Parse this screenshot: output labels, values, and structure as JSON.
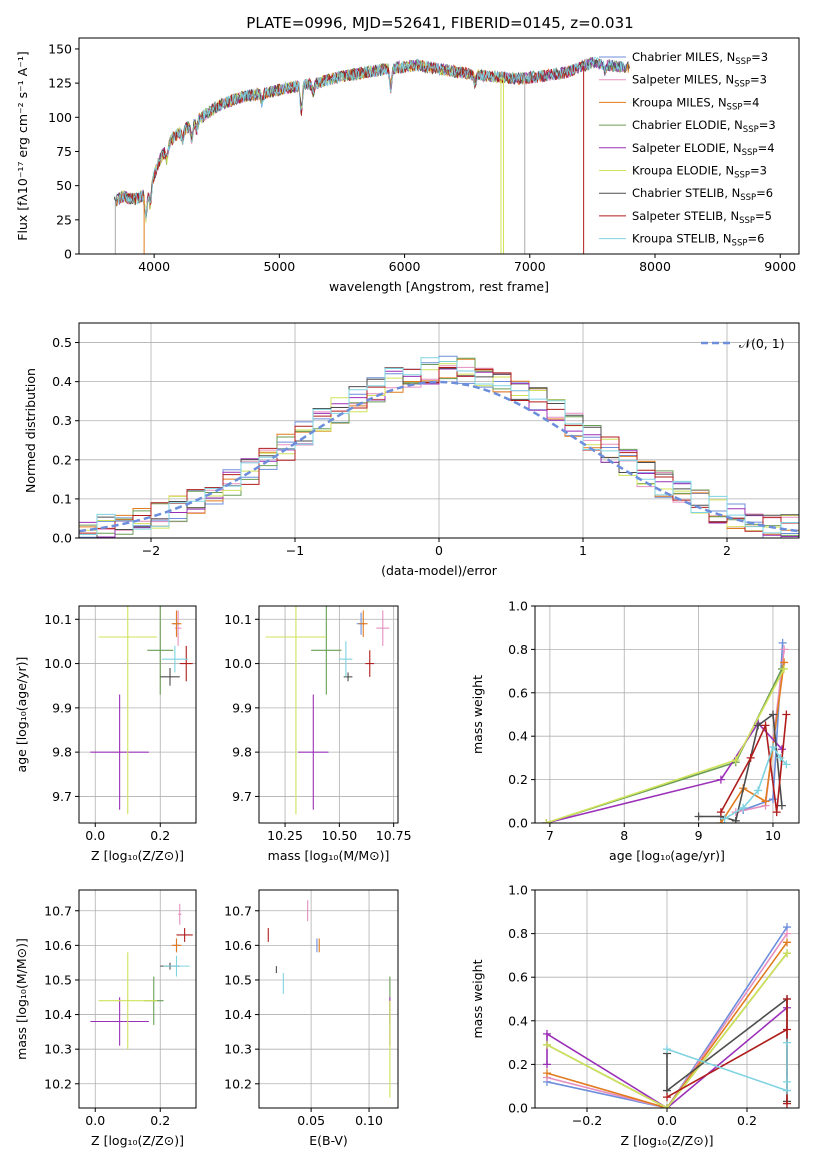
{
  "title": "PLATE=0996, MJD=52641, FIBERID=0145, z=0.031",
  "models": [
    {
      "name": "Chabrier MILES",
      "nssp": "3",
      "color": "#6c8edb"
    },
    {
      "name": "Salpeter MILES",
      "nssp": "3",
      "color": "#e68fbf"
    },
    {
      "name": "Kroupa MILES",
      "nssp": "4",
      "color": "#e07b1f"
    },
    {
      "name": "Chabrier ELODIE",
      "nssp": "3",
      "color": "#6a9e56"
    },
    {
      "name": "Salpeter ELODIE",
      "nssp": "4",
      "color": "#9b30b8"
    },
    {
      "name": "Kroupa ELODIE",
      "nssp": "3",
      "color": "#d0e25a"
    },
    {
      "name": "Chabrier STELIB",
      "nssp": "6",
      "color": "#4d4d4d"
    },
    {
      "name": "Salpeter STELIB",
      "nssp": "5",
      "color": "#b01c1c"
    },
    {
      "name": "Kroupa STELIB",
      "nssp": "6",
      "color": "#7fd3e0"
    }
  ],
  "chart_data": [
    {
      "id": "spectrum",
      "type": "line",
      "title": "PLATE=0996, MJD=52641, FIBERID=0145, z=0.031",
      "xlabel": "wavelength [Angstrom, rest frame]",
      "ylabel": "Flux [fλ10⁻¹⁷ erg cm⁻² s⁻¹ A⁻¹]",
      "xlim": [
        3400,
        9150
      ],
      "ylim": [
        0,
        158
      ],
      "xticks": [
        4000,
        5000,
        6000,
        7000,
        8000,
        9000
      ],
      "yticks": [
        0,
        25,
        50,
        75,
        100,
        125,
        150
      ],
      "grid": false,
      "legend_position": "top-right",
      "continuum": {
        "x": [
          3680,
          3750,
          3850,
          3950,
          4050,
          4150,
          4300,
          4500,
          4700,
          4900,
          5100,
          5300,
          5500,
          5700,
          5900,
          6100,
          6300,
          6500,
          6700,
          6900,
          7100,
          7300,
          7500,
          7700,
          7800
        ],
        "y": [
          38,
          42,
          40,
          45,
          70,
          85,
          95,
          108,
          115,
          118,
          122,
          125,
          130,
          133,
          136,
          138,
          135,
          132,
          130,
          128,
          130,
          133,
          140,
          137,
          136
        ]
      }
    },
    {
      "id": "residuals",
      "type": "histogram",
      "xlabel": "(data-model)/error",
      "ylabel": "Normed distribution",
      "xlim": [
        -2.5,
        2.5
      ],
      "ylim": [
        0,
        0.55
      ],
      "xticks": [
        -2,
        -1,
        0,
        1,
        2
      ],
      "yticks": [
        0.0,
        0.1,
        0.2,
        0.3,
        0.4,
        0.5
      ],
      "grid": true,
      "legend_position": "top-right",
      "reference_curve": {
        "name": "𝒩(0, 1)",
        "mean": 0,
        "sigma": 1,
        "color": "#6c8edb"
      }
    },
    {
      "id": "age-vs-Z",
      "type": "errorbar",
      "xlabel": "Z [log₁₀(Z/Z⊙)]",
      "ylabel": "age  [log₁₀(age/yr)]",
      "xlim": [
        -0.05,
        0.31
      ],
      "ylim": [
        9.64,
        10.13
      ],
      "xticks": [
        0.0,
        0.2
      ],
      "yticks": [
        9.7,
        9.8,
        9.9,
        10.0,
        10.1
      ],
      "grid": true,
      "points": [
        {
          "model": 0,
          "x": 0.25,
          "xerr": 0.01,
          "y": 10.09,
          "yerr": 0.025
        },
        {
          "model": 1,
          "x": 0.255,
          "xerr": 0.01,
          "y": 10.08,
          "yerr": 0.04
        },
        {
          "model": 2,
          "x": 0.25,
          "xerr": 0.015,
          "y": 10.09,
          "yerr": 0.03
        },
        {
          "model": 3,
          "x": 0.2,
          "xerr": 0.04,
          "y": 10.03,
          "yerr": 0.1
        },
        {
          "model": 4,
          "x": 0.075,
          "xerr": 0.09,
          "y": 9.8,
          "yerr": 0.13
        },
        {
          "model": 5,
          "x": 0.1,
          "xerr": 0.09,
          "y": 10.06,
          "yerr": 0.4
        },
        {
          "model": 6,
          "x": 0.23,
          "xerr": 0.03,
          "y": 9.97,
          "yerr": 0.02
        },
        {
          "model": 7,
          "x": 0.28,
          "xerr": 0.02,
          "y": 10.0,
          "yerr": 0.04
        },
        {
          "model": 8,
          "x": 0.245,
          "xerr": 0.04,
          "y": 10.01,
          "yerr": 0.03
        }
      ]
    },
    {
      "id": "age-vs-mass",
      "type": "errorbar",
      "xlabel": "mass [log₁₀(M/M⊙)]",
      "ylabel": "",
      "xlim": [
        10.13,
        10.77
      ],
      "ylim": [
        9.64,
        10.13
      ],
      "xticks": [
        10.25,
        10.5,
        10.75
      ],
      "yticks": [
        9.7,
        9.8,
        9.9,
        10.0,
        10.1
      ],
      "grid": true,
      "points": [
        {
          "model": 0,
          "x": 10.6,
          "xerr": 0.02,
          "y": 10.09,
          "yerr": 0.025
        },
        {
          "model": 1,
          "x": 10.7,
          "xerr": 0.03,
          "y": 10.08,
          "yerr": 0.04
        },
        {
          "model": 2,
          "x": 10.61,
          "xerr": 0.02,
          "y": 10.09,
          "yerr": 0.03
        },
        {
          "model": 3,
          "x": 10.44,
          "xerr": 0.07,
          "y": 10.03,
          "yerr": 0.1
        },
        {
          "model": 4,
          "x": 10.38,
          "xerr": 0.07,
          "y": 9.8,
          "yerr": 0.13
        },
        {
          "model": 5,
          "x": 10.3,
          "xerr": 0.14,
          "y": 10.06,
          "yerr": 0.4
        },
        {
          "model": 6,
          "x": 10.54,
          "xerr": 0.02,
          "y": 9.97,
          "yerr": 0.01
        },
        {
          "model": 7,
          "x": 10.64,
          "xerr": 0.02,
          "y": 10.0,
          "yerr": 0.03
        },
        {
          "model": 8,
          "x": 10.53,
          "xerr": 0.03,
          "y": 10.01,
          "yerr": 0.04
        }
      ]
    },
    {
      "id": "weight-vs-age",
      "type": "line",
      "xlabel": "age  [log₁₀(age/yr)]",
      "ylabel": "mass weight",
      "xlim": [
        6.8,
        10.35
      ],
      "ylim": [
        0,
        1.0
      ],
      "xticks": [
        7,
        8,
        9,
        10
      ],
      "yticks": [
        0.0,
        0.2,
        0.4,
        0.6,
        0.8,
        1.0
      ],
      "grid": true,
      "series": [
        {
          "model": 0,
          "x": [
            9.6,
            10.0,
            10.13
          ],
          "y": [
            0.06,
            0.11,
            0.83
          ]
        },
        {
          "model": 1,
          "x": [
            9.5,
            9.9,
            10.15
          ],
          "y": [
            0.05,
            0.08,
            0.8
          ]
        },
        {
          "model": 2,
          "x": [
            9.3,
            9.6,
            9.9,
            10.15
          ],
          "y": [
            0.0,
            0.16,
            0.1,
            0.74
          ]
        },
        {
          "model": 3,
          "x": [
            6.95,
            9.5,
            10.12
          ],
          "y": [
            0.0,
            0.28,
            0.71
          ]
        },
        {
          "model": 4,
          "x": [
            6.95,
            9.3,
            9.8,
            10.12
          ],
          "y": [
            0.0,
            0.2,
            0.46,
            0.34
          ]
        },
        {
          "model": 5,
          "x": [
            6.95,
            9.5,
            10.15
          ],
          "y": [
            0.0,
            0.29,
            0.71
          ]
        },
        {
          "model": 6,
          "x": [
            9.0,
            9.3,
            9.5,
            9.8,
            10.0,
            10.12
          ],
          "y": [
            0.03,
            0.03,
            0.01,
            0.45,
            0.5,
            0.08
          ]
        },
        {
          "model": 7,
          "x": [
            9.3,
            9.7,
            9.9,
            10.05,
            10.18
          ],
          "y": [
            0.05,
            0.3,
            0.45,
            0.05,
            0.5
          ]
        },
        {
          "model": 8,
          "x": [
            9.35,
            9.6,
            9.8,
            10.0,
            10.1,
            10.18
          ],
          "y": [
            0.02,
            0.07,
            0.15,
            0.35,
            0.3,
            0.27
          ]
        }
      ]
    },
    {
      "id": "mass-vs-Z",
      "type": "errorbar",
      "xlabel": "Z [log₁₀(Z/Z⊙)]",
      "ylabel": "mass [log₁₀(M/M⊙)]",
      "xlim": [
        -0.05,
        0.31
      ],
      "ylim": [
        10.13,
        10.76
      ],
      "xticks": [
        0.0,
        0.2
      ],
      "yticks": [
        10.2,
        10.3,
        10.4,
        10.5,
        10.6,
        10.7
      ],
      "grid": true,
      "points": [
        {
          "model": 0,
          "x": 0.25,
          "xerr": 0.01,
          "y": 10.6,
          "yerr": 0.02
        },
        {
          "model": 1,
          "x": 0.26,
          "xerr": 0.005,
          "y": 10.69,
          "yerr": 0.03
        },
        {
          "model": 2,
          "x": 0.25,
          "xerr": 0.015,
          "y": 10.6,
          "yerr": 0.02
        },
        {
          "model": 3,
          "x": 0.18,
          "xerr": 0.03,
          "y": 10.44,
          "yerr": 0.07
        },
        {
          "model": 4,
          "x": 0.075,
          "xerr": 0.09,
          "y": 10.38,
          "yerr": 0.07
        },
        {
          "model": 5,
          "x": 0.1,
          "xerr": 0.09,
          "y": 10.44,
          "yerr": 0.14
        },
        {
          "model": 6,
          "x": 0.23,
          "xerr": 0.03,
          "y": 10.54,
          "yerr": 0.01
        },
        {
          "model": 7,
          "x": 0.275,
          "xerr": 0.025,
          "y": 10.63,
          "yerr": 0.02
        },
        {
          "model": 8,
          "x": 0.25,
          "xerr": 0.04,
          "y": 10.54,
          "yerr": 0.03
        }
      ]
    },
    {
      "id": "mass-vs-ebv",
      "type": "errorbar",
      "xlabel": "E(B-V)",
      "ylabel": "",
      "xlim": [
        0.005,
        0.125
      ],
      "ylim": [
        10.13,
        10.76
      ],
      "xticks": [
        0.05,
        0.1
      ],
      "yticks": [
        10.2,
        10.3,
        10.4,
        10.5,
        10.6,
        10.7
      ],
      "grid": true,
      "points": [
        {
          "model": 0,
          "x": 0.055,
          "xerr": 0.0,
          "y": 10.6,
          "yerr": 0.02
        },
        {
          "model": 1,
          "x": 0.047,
          "xerr": 0.0,
          "y": 10.7,
          "yerr": 0.03
        },
        {
          "model": 2,
          "x": 0.057,
          "xerr": 0.0,
          "y": 10.6,
          "yerr": 0.02
        },
        {
          "model": 3,
          "x": 0.118,
          "xerr": 0.0,
          "y": 10.44,
          "yerr": 0.07
        },
        {
          "model": 4,
          "x": 0.118,
          "xerr": 0.0,
          "y": 10.38,
          "yerr": 0.07
        },
        {
          "model": 5,
          "x": 0.118,
          "xerr": 0.0,
          "y": 10.3,
          "yerr": 0.14
        },
        {
          "model": 6,
          "x": 0.02,
          "xerr": 0.0,
          "y": 10.53,
          "yerr": 0.01
        },
        {
          "model": 7,
          "x": 0.013,
          "xerr": 0.0,
          "y": 10.63,
          "yerr": 0.02
        },
        {
          "model": 8,
          "x": 0.026,
          "xerr": 0.0,
          "y": 10.49,
          "yerr": 0.03
        }
      ]
    },
    {
      "id": "weight-vs-Z",
      "type": "line",
      "xlabel": "Z [log₁₀(Z/Z⊙)]",
      "ylabel": "mass weight",
      "xlim": [
        -0.33,
        0.33
      ],
      "ylim": [
        0,
        1.0
      ],
      "xticks": [
        -0.2,
        0.0,
        0.2
      ],
      "yticks": [
        0.0,
        0.2,
        0.4,
        0.6,
        0.8,
        1.0
      ],
      "grid": true,
      "series": [
        {
          "model": 0,
          "x": [
            -0.3,
            0.0,
            0.3
          ],
          "y": [
            0.12,
            0.0,
            0.83
          ]
        },
        {
          "model": 1,
          "x": [
            -0.3,
            0.0,
            0.3
          ],
          "y": [
            0.14,
            0.0,
            0.8
          ]
        },
        {
          "model": 2,
          "x": [
            -0.3,
            0.0,
            0.3
          ],
          "y": [
            0.16,
            0.0,
            0.76
          ]
        },
        {
          "model": 3,
          "x": [
            -0.3,
            0.0,
            0.3
          ],
          "y": [
            0.29,
            0.0,
            0.71
          ]
        },
        {
          "model": 4,
          "x": [
            -0.3,
            -0.3,
            0.0,
            0.3
          ],
          "y": [
            0.2,
            0.34,
            0.0,
            0.46
          ]
        },
        {
          "model": 5,
          "x": [
            -0.3,
            0.0,
            0.3
          ],
          "y": [
            0.29,
            0.0,
            0.71
          ]
        },
        {
          "model": 6,
          "x": [
            0.0,
            0.0,
            0.3,
            0.3
          ],
          "y": [
            0.25,
            0.08,
            0.5,
            0.03
          ]
        },
        {
          "model": 7,
          "x": [
            0.0,
            0.3,
            0.3,
            0.3
          ],
          "y": [
            0.05,
            0.36,
            0.5,
            0.02
          ]
        },
        {
          "model": 8,
          "x": [
            0.0,
            0.3,
            0.3,
            0.3
          ],
          "y": [
            0.27,
            0.08,
            0.3,
            0.12
          ]
        }
      ]
    }
  ]
}
